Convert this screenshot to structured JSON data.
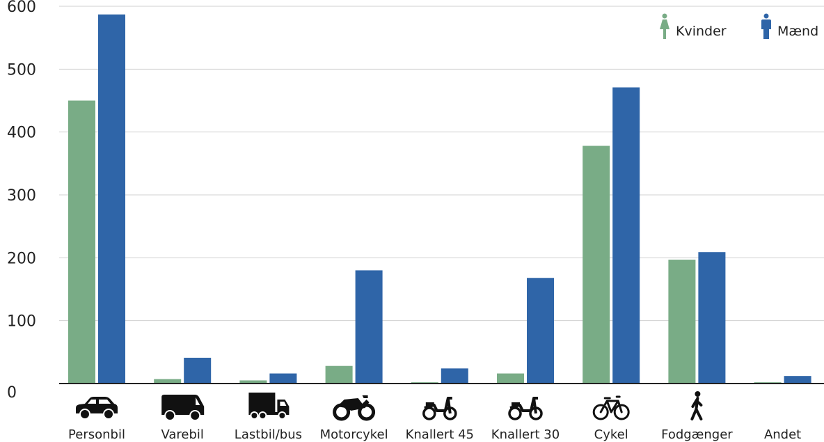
{
  "chart_data": {
    "type": "bar",
    "title": "",
    "xlabel": "",
    "ylabel": "",
    "categories": [
      "Personbil",
      "Varebil",
      "Lastbil/bus",
      "Motorcykel",
      "Knallert 45",
      "Knallert 30",
      "Cykel",
      "Fodgænger",
      "Andet"
    ],
    "category_icons": [
      "car-icon",
      "van-icon",
      "truck-icon",
      "motorcycle-icon",
      "moped-45-icon",
      "moped-30-icon",
      "bicycle-icon",
      "pedestrian-icon",
      ""
    ],
    "series": [
      {
        "name": "Kvinder",
        "color": "#79ac86",
        "icon": "woman-icon",
        "values": [
          450,
          7,
          5,
          28,
          2,
          16,
          378,
          197,
          2
        ]
      },
      {
        "name": "Mænd",
        "color": "#2f65a8",
        "icon": "man-icon",
        "values": [
          587,
          41,
          16,
          180,
          24,
          168,
          471,
          209,
          12
        ]
      }
    ],
    "ylim": [
      0,
      600
    ],
    "yticks": [
      0,
      100,
      200,
      300,
      400,
      500,
      600
    ],
    "grid": true,
    "legend_position": "top-right"
  }
}
